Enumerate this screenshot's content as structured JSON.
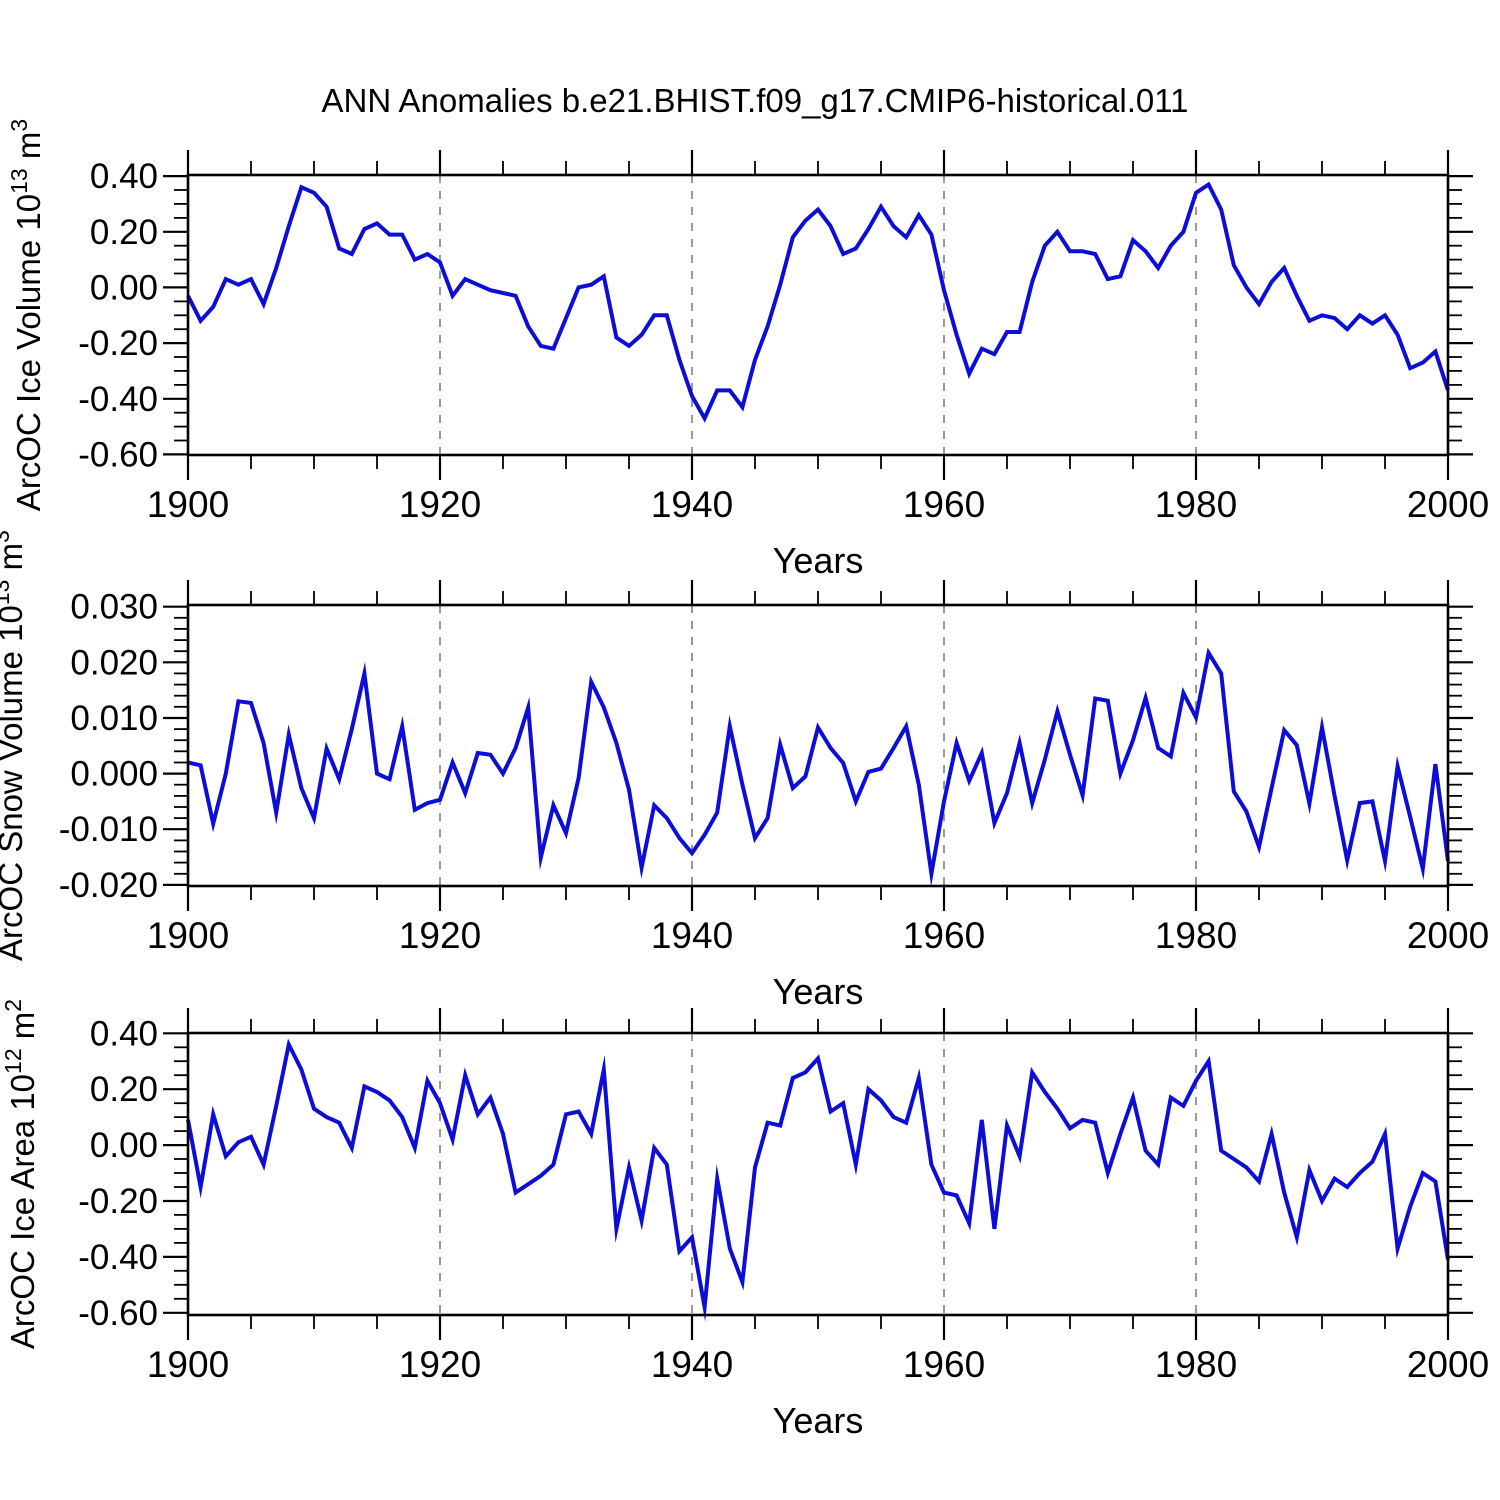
{
  "title": "ANN Anomalies b.e21.BHIST.f09_g17.CMIP6-historical.011",
  "background": "#ffffff",
  "line_color": "#0d0dd8",
  "grid_color": "#999999",
  "chart_data": [
    {
      "type": "line",
      "name": "ice-volume",
      "title": "",
      "xlabel": "Years",
      "ylabel": {
        "text": "ArcOC Ice Volume",
        "power": "10",
        "exp": "13",
        "unit": "m",
        "unit_exp": "3"
      },
      "xlim": [
        1900,
        2000
      ],
      "x_ticks": [
        {
          "v": 1900,
          "label": "1900"
        },
        {
          "v": 1920,
          "label": "1920"
        },
        {
          "v": 1940,
          "label": "1940"
        },
        {
          "v": 1960,
          "label": "1960"
        },
        {
          "v": 1980,
          "label": "1980"
        },
        {
          "v": 2000,
          "label": "2000"
        }
      ],
      "x_minor_step": 5,
      "x_gridlines": [
        1920,
        1940,
        1960,
        1980
      ],
      "ylim": [
        -0.602,
        0.404
      ],
      "y_ticks": [
        {
          "v": 0.4,
          "label": "0.40"
        },
        {
          "v": 0.2,
          "label": "0.20"
        },
        {
          "v": 0.0,
          "label": "0.00"
        },
        {
          "v": -0.2,
          "label": "-0.20"
        },
        {
          "v": -0.4,
          "label": "-0.40"
        },
        {
          "v": -0.6,
          "label": "-0.60"
        }
      ],
      "y_minor_step": 0.05,
      "x_start_year": 1900,
      "values": [
        -0.03,
        -0.12,
        -0.07,
        0.03,
        0.01,
        0.03,
        -0.06,
        0.07,
        0.22,
        0.36,
        0.34,
        0.29,
        0.14,
        0.12,
        0.21,
        0.23,
        0.19,
        0.19,
        0.1,
        0.12,
        0.09,
        -0.03,
        0.03,
        0.01,
        -0.01,
        -0.02,
        -0.03,
        -0.14,
        -0.21,
        -0.22,
        -0.11,
        0.0,
        0.01,
        0.04,
        -0.18,
        -0.21,
        -0.17,
        -0.1,
        -0.1,
        -0.26,
        -0.39,
        -0.47,
        -0.37,
        -0.37,
        -0.43,
        -0.26,
        -0.14,
        0.01,
        0.18,
        0.24,
        0.28,
        0.22,
        0.12,
        0.14,
        0.21,
        0.29,
        0.22,
        0.18,
        0.26,
        0.19,
        -0.01,
        -0.17,
        -0.31,
        -0.22,
        -0.24,
        -0.16,
        -0.16,
        0.02,
        0.15,
        0.2,
        0.13,
        0.13,
        0.12,
        0.03,
        0.04,
        0.17,
        0.13,
        0.07,
        0.15,
        0.2,
        0.34,
        0.37,
        0.28,
        0.08,
        0.0,
        -0.06,
        0.02,
        0.07,
        -0.03,
        -0.12,
        -0.1,
        -0.11,
        -0.15,
        -0.1,
        -0.13,
        -0.1,
        -0.17,
        -0.29,
        -0.27,
        -0.23,
        -0.37
      ]
    },
    {
      "type": "line",
      "name": "snow-volume",
      "title": "",
      "xlabel": "Years",
      "ylabel": {
        "text": "ArcOC Snow Volume",
        "power": "10",
        "exp": "13",
        "unit": "m",
        "unit_exp": "3"
      },
      "xlim": [
        1900,
        2000
      ],
      "x_ticks": [
        {
          "v": 1900,
          "label": "1900"
        },
        {
          "v": 1920,
          "label": "1920"
        },
        {
          "v": 1940,
          "label": "1940"
        },
        {
          "v": 1960,
          "label": "1960"
        },
        {
          "v": 1980,
          "label": "1980"
        },
        {
          "v": 2000,
          "label": "2000"
        }
      ],
      "x_minor_step": 5,
      "x_gridlines": [
        1920,
        1940,
        1960,
        1980
      ],
      "ylim": [
        -0.0202,
        0.0303
      ],
      "y_ticks": [
        {
          "v": 0.03,
          "label": "0.030"
        },
        {
          "v": 0.02,
          "label": "0.020"
        },
        {
          "v": 0.01,
          "label": "0.010"
        },
        {
          "v": 0.0,
          "label": "0.000"
        },
        {
          "v": -0.01,
          "label": "-0.010"
        },
        {
          "v": -0.02,
          "label": "-0.020"
        }
      ],
      "y_minor_step": 0.002,
      "x_start_year": 1900,
      "values": [
        0.002,
        0.0015,
        -0.009,
        0.0,
        0.013,
        0.0127,
        0.0055,
        -0.007,
        0.007,
        -0.0026,
        -0.008,
        0.0045,
        -0.001,
        0.008,
        0.018,
        0.0,
        -0.001,
        0.0085,
        -0.0065,
        -0.0053,
        -0.0047,
        0.002,
        -0.0035,
        0.0037,
        0.0034,
        0.0,
        0.0046,
        0.0119,
        -0.0151,
        -0.0057,
        -0.0107,
        -0.0008,
        0.0165,
        0.0119,
        0.0055,
        -0.0029,
        -0.0169,
        -0.0057,
        -0.008,
        -0.0116,
        -0.0143,
        -0.011,
        -0.007,
        0.0085,
        -0.002,
        -0.0116,
        -0.008,
        0.0052,
        -0.0026,
        -0.0005,
        0.0083,
        0.0046,
        0.0019,
        -0.005,
        0.0003,
        0.0009,
        0.0046,
        0.0085,
        -0.002,
        -0.018,
        -0.005,
        0.0055,
        -0.0013,
        0.0037,
        -0.0089,
        -0.0035,
        0.0055,
        -0.0053,
        0.0025,
        0.0112,
        0.0034,
        -0.0039,
        0.0135,
        0.0131,
        0.0,
        0.006,
        0.0136,
        0.0046,
        0.0031,
        0.0145,
        0.0101,
        0.0217,
        0.018,
        -0.0032,
        -0.0068,
        -0.0132,
        -0.0026,
        0.0078,
        0.0051,
        -0.0054,
        0.0083,
        -0.004,
        -0.0156,
        -0.0053,
        -0.005,
        -0.0157,
        0.0013,
        -0.0078,
        -0.0171,
        0.0017,
        -0.0157
      ]
    },
    {
      "type": "line",
      "name": "ice-area",
      "title": "",
      "xlabel": "Years",
      "ylabel": {
        "text": "ArcOC Ice Area",
        "power": "10",
        "exp": "12",
        "unit": "m",
        "unit_exp": "2"
      },
      "xlim": [
        1900,
        2000
      ],
      "x_ticks": [
        {
          "v": 1900,
          "label": "1900"
        },
        {
          "v": 1920,
          "label": "1920"
        },
        {
          "v": 1940,
          "label": "1940"
        },
        {
          "v": 1960,
          "label": "1960"
        },
        {
          "v": 1980,
          "label": "1980"
        },
        {
          "v": 2000,
          "label": "2000"
        }
      ],
      "x_minor_step": 5,
      "x_gridlines": [
        1920,
        1940,
        1960,
        1980
      ],
      "ylim": [
        -0.608,
        0.401
      ],
      "y_ticks": [
        {
          "v": 0.4,
          "label": "0.40"
        },
        {
          "v": 0.2,
          "label": "0.20"
        },
        {
          "v": 0.0,
          "label": "0.00"
        },
        {
          "v": -0.2,
          "label": "-0.20"
        },
        {
          "v": -0.4,
          "label": "-0.40"
        },
        {
          "v": -0.6,
          "label": "-0.60"
        }
      ],
      "y_minor_step": 0.05,
      "x_start_year": 1900,
      "values": [
        0.09,
        -0.15,
        0.11,
        -0.04,
        0.01,
        0.03,
        -0.07,
        0.14,
        0.36,
        0.27,
        0.13,
        0.1,
        0.08,
        -0.01,
        0.21,
        0.19,
        0.16,
        0.1,
        -0.01,
        0.23,
        0.15,
        0.02,
        0.25,
        0.11,
        0.17,
        0.04,
        -0.17,
        -0.14,
        -0.11,
        -0.07,
        0.11,
        0.12,
        0.04,
        0.27,
        -0.3,
        -0.08,
        -0.27,
        -0.01,
        -0.07,
        -0.38,
        -0.33,
        -0.58,
        -0.12,
        -0.37,
        -0.49,
        -0.08,
        0.08,
        0.07,
        0.24,
        0.26,
        0.31,
        0.12,
        0.15,
        -0.07,
        0.2,
        0.16,
        0.1,
        0.08,
        0.24,
        -0.07,
        -0.17,
        -0.18,
        -0.28,
        0.09,
        -0.3,
        0.07,
        -0.04,
        0.26,
        0.19,
        0.13,
        0.06,
        0.09,
        0.08,
        -0.1,
        0.04,
        0.17,
        -0.02,
        -0.07,
        0.17,
        0.14,
        0.23,
        0.3,
        -0.02,
        -0.05,
        -0.08,
        -0.13,
        0.04,
        -0.17,
        -0.33,
        -0.09,
        -0.2,
        -0.12,
        -0.15,
        -0.1,
        -0.06,
        0.04,
        -0.37,
        -0.22,
        -0.1,
        -0.13,
        -0.41
      ]
    }
  ]
}
